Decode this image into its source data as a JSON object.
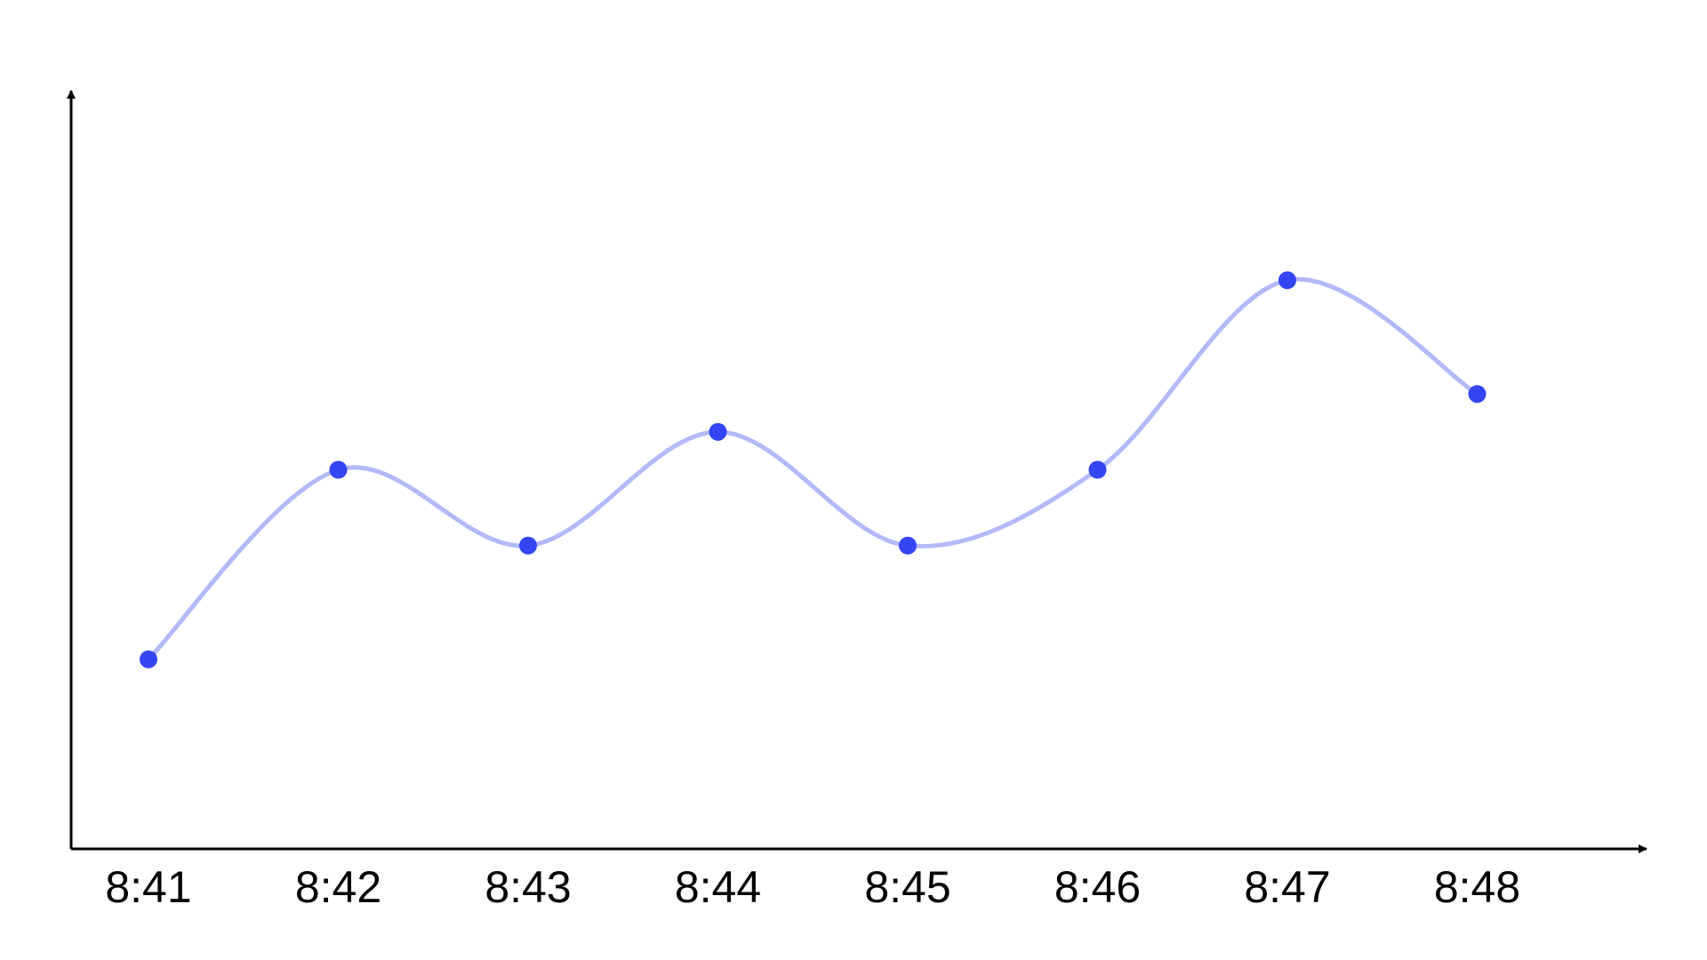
{
  "chart_data": {
    "type": "line",
    "title": "",
    "xlabel": "",
    "ylabel": "",
    "categories": [
      "8:41",
      "8:42",
      "8:43",
      "8:44",
      "8:45",
      "8:46",
      "8:47",
      "8:48"
    ],
    "series": [
      {
        "values": [
          2,
          7,
          5,
          8,
          5,
          7,
          12,
          9
        ],
        "line_color": "#b3b8f7",
        "marker_color": "#3445f5"
      }
    ],
    "ylim": [
      -3,
      17
    ],
    "smooth": true,
    "grid": false,
    "legend": "none",
    "y_ticks_shown": false,
    "axis_color": "#000000"
  }
}
